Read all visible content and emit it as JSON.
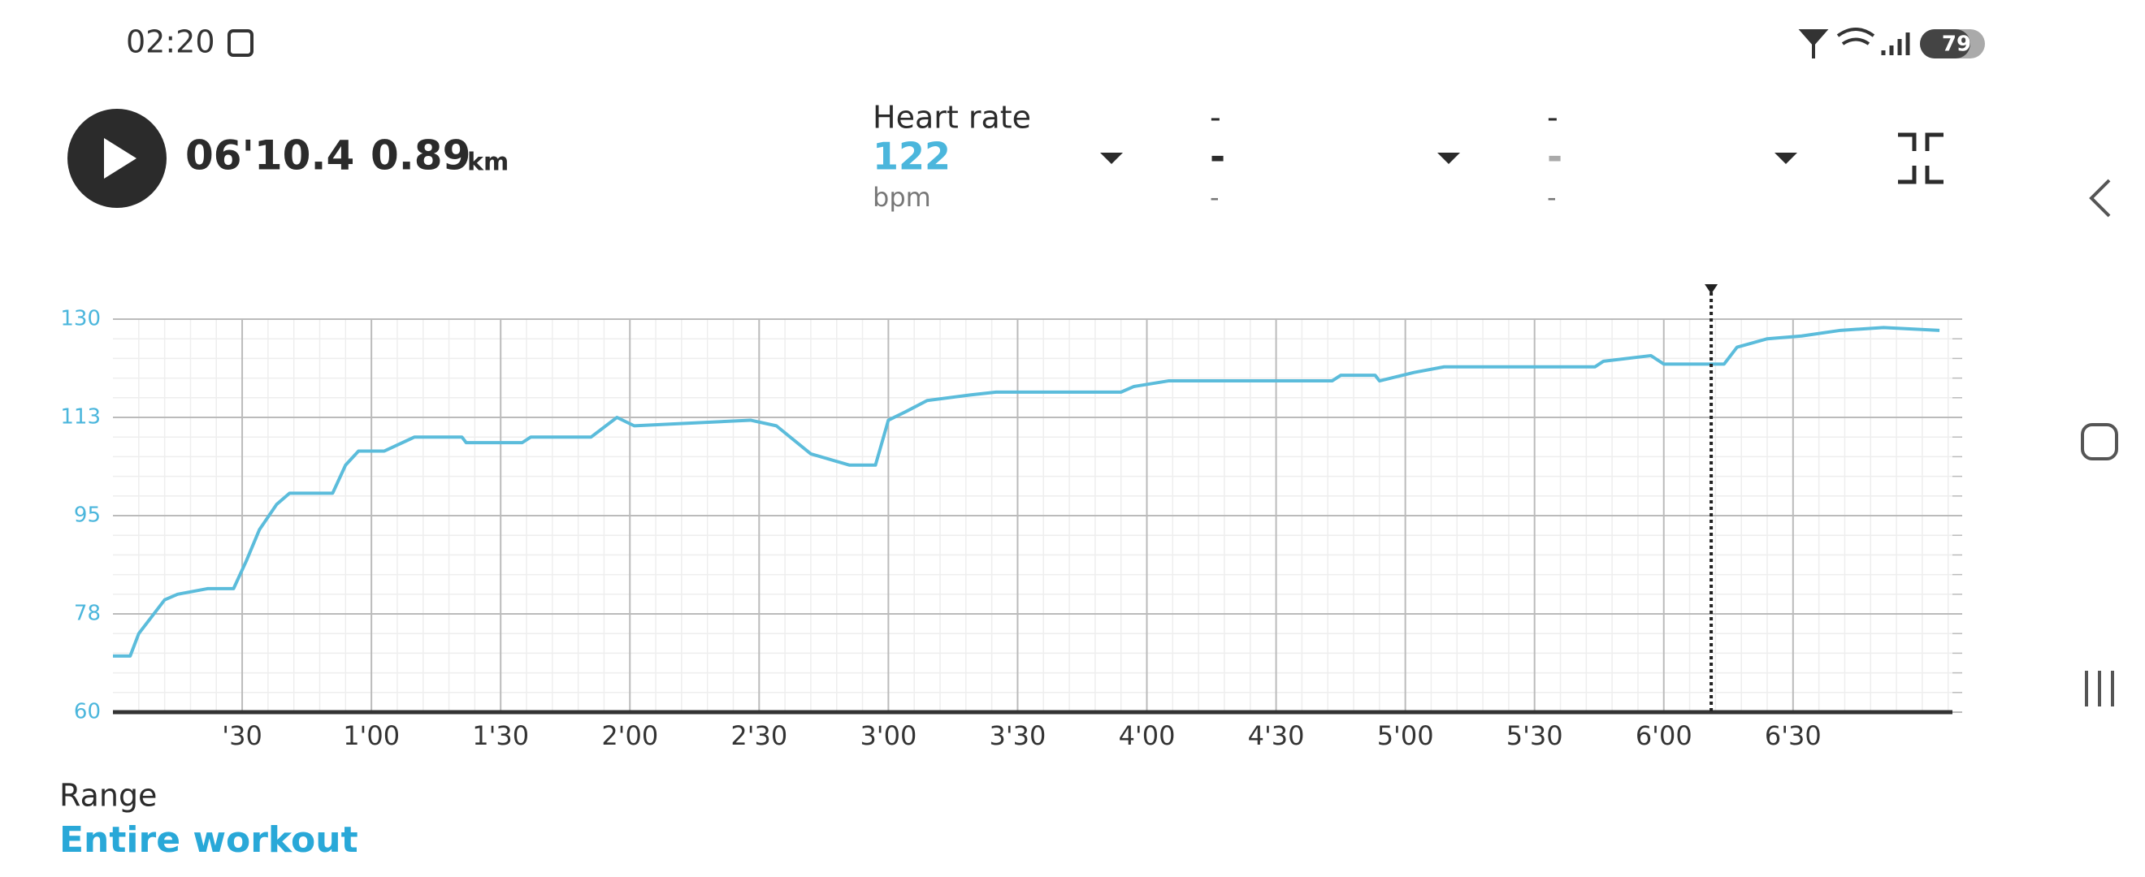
{
  "status_bar": {
    "time": "02:20",
    "battery": "79"
  },
  "header": {
    "duration": "06'10.4",
    "distance": "0.89",
    "distance_unit": "km",
    "metrics": [
      {
        "label": "Heart rate",
        "value": "122",
        "unit": "bpm"
      },
      {
        "label": "-",
        "value": "-",
        "unit": "-"
      },
      {
        "label": "-",
        "value": "-",
        "unit": "-"
      }
    ]
  },
  "chart_data": {
    "type": "line",
    "x": [
      0,
      4,
      6,
      9,
      12,
      15,
      22,
      28,
      31,
      34,
      38,
      41,
      51,
      54,
      57,
      63,
      70,
      81,
      82,
      95,
      97,
      111,
      117,
      121,
      148,
      154,
      162,
      171,
      177,
      180,
      184,
      189,
      199,
      205,
      234,
      237,
      245,
      283,
      285,
      293,
      294,
      302,
      309,
      344,
      346,
      357,
      360,
      374,
      377,
      384,
      392,
      401,
      411,
      424
    ],
    "series": [
      {
        "name": "Heart rate",
        "color": "#5bbcdb",
        "values": [
          70,
          70,
          74,
          77,
          80,
          81,
          82,
          82,
          87,
          92.5,
          97,
          99,
          99,
          104,
          106.5,
          106.5,
          109,
          109,
          108,
          108,
          109,
          109,
          112.5,
          111,
          112,
          111,
          106,
          104,
          104,
          112,
          113.5,
          115.5,
          116.5,
          117,
          117,
          118,
          119,
          119,
          120,
          120,
          119,
          120.5,
          121.5,
          121.5,
          122.5,
          123.5,
          122,
          122,
          125,
          126.5,
          127,
          128,
          128.5,
          128
        ]
      }
    ],
    "xlim": [
      0,
      427
    ],
    "xticks": [
      {
        "value": 30,
        "label": "'30"
      },
      {
        "value": 60,
        "label": "1'00"
      },
      {
        "value": 90,
        "label": "1'30"
      },
      {
        "value": 120,
        "label": "2'00"
      },
      {
        "value": 150,
        "label": "2'30"
      },
      {
        "value": 180,
        "label": "3'00"
      },
      {
        "value": 210,
        "label": "3'30"
      },
      {
        "value": 240,
        "label": "4'00"
      },
      {
        "value": 270,
        "label": "4'30"
      },
      {
        "value": 300,
        "label": "5'00"
      },
      {
        "value": 330,
        "label": "5'30"
      },
      {
        "value": 360,
        "label": "6'00"
      },
      {
        "value": 390,
        "label": "6'30"
      }
    ],
    "ylim": [
      60,
      130
    ],
    "yticks": [
      60,
      {
        "value": 77.5,
        "label": "78"
      },
      95,
      {
        "value": 112.5,
        "label": "113"
      },
      130
    ],
    "cursor_x": 371,
    "grid": true
  },
  "range": {
    "label": "Range",
    "value": "Entire workout"
  }
}
